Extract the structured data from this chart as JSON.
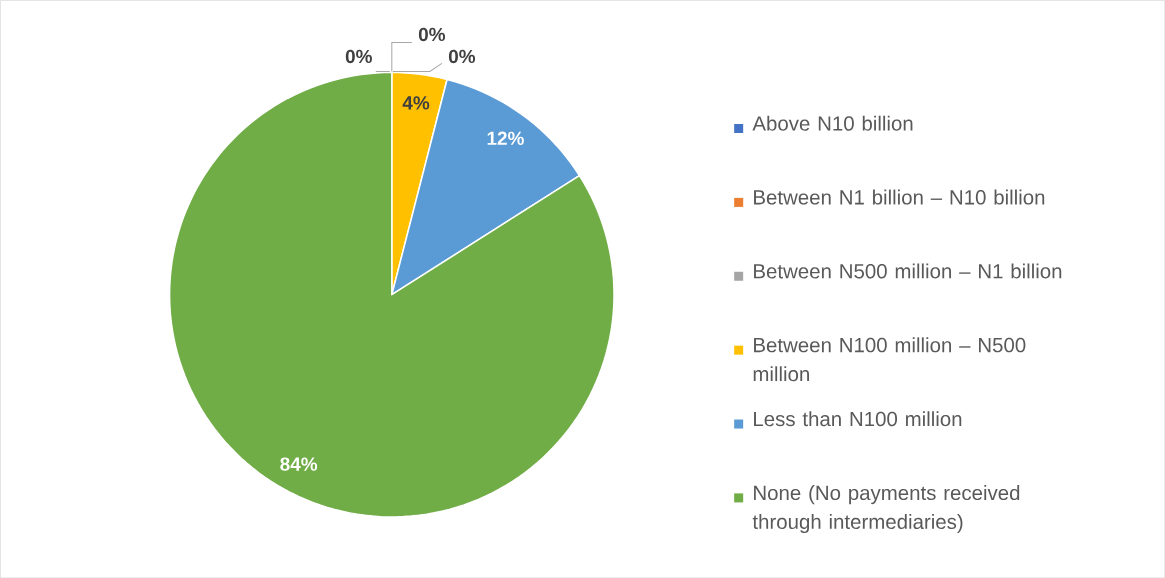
{
  "chart_data": {
    "type": "pie",
    "categories": [
      "Above N10 billion",
      "Between N1 billion – N10 billion",
      "Between N500 million – N1 billion",
      "Between N100 million – N500 million",
      "Less than N100 million",
      "None (No payments received through intermediaries)"
    ],
    "values": [
      0,
      0,
      0,
      4,
      12,
      84
    ],
    "colors": [
      "#4472c4",
      "#ed7d31",
      "#a5a5a5",
      "#ffc000",
      "#5b9bd5",
      "#70ad47"
    ],
    "value_labels": [
      "0%",
      "0%",
      "0%",
      "4%",
      "12%",
      "84%"
    ],
    "legend": "right"
  }
}
